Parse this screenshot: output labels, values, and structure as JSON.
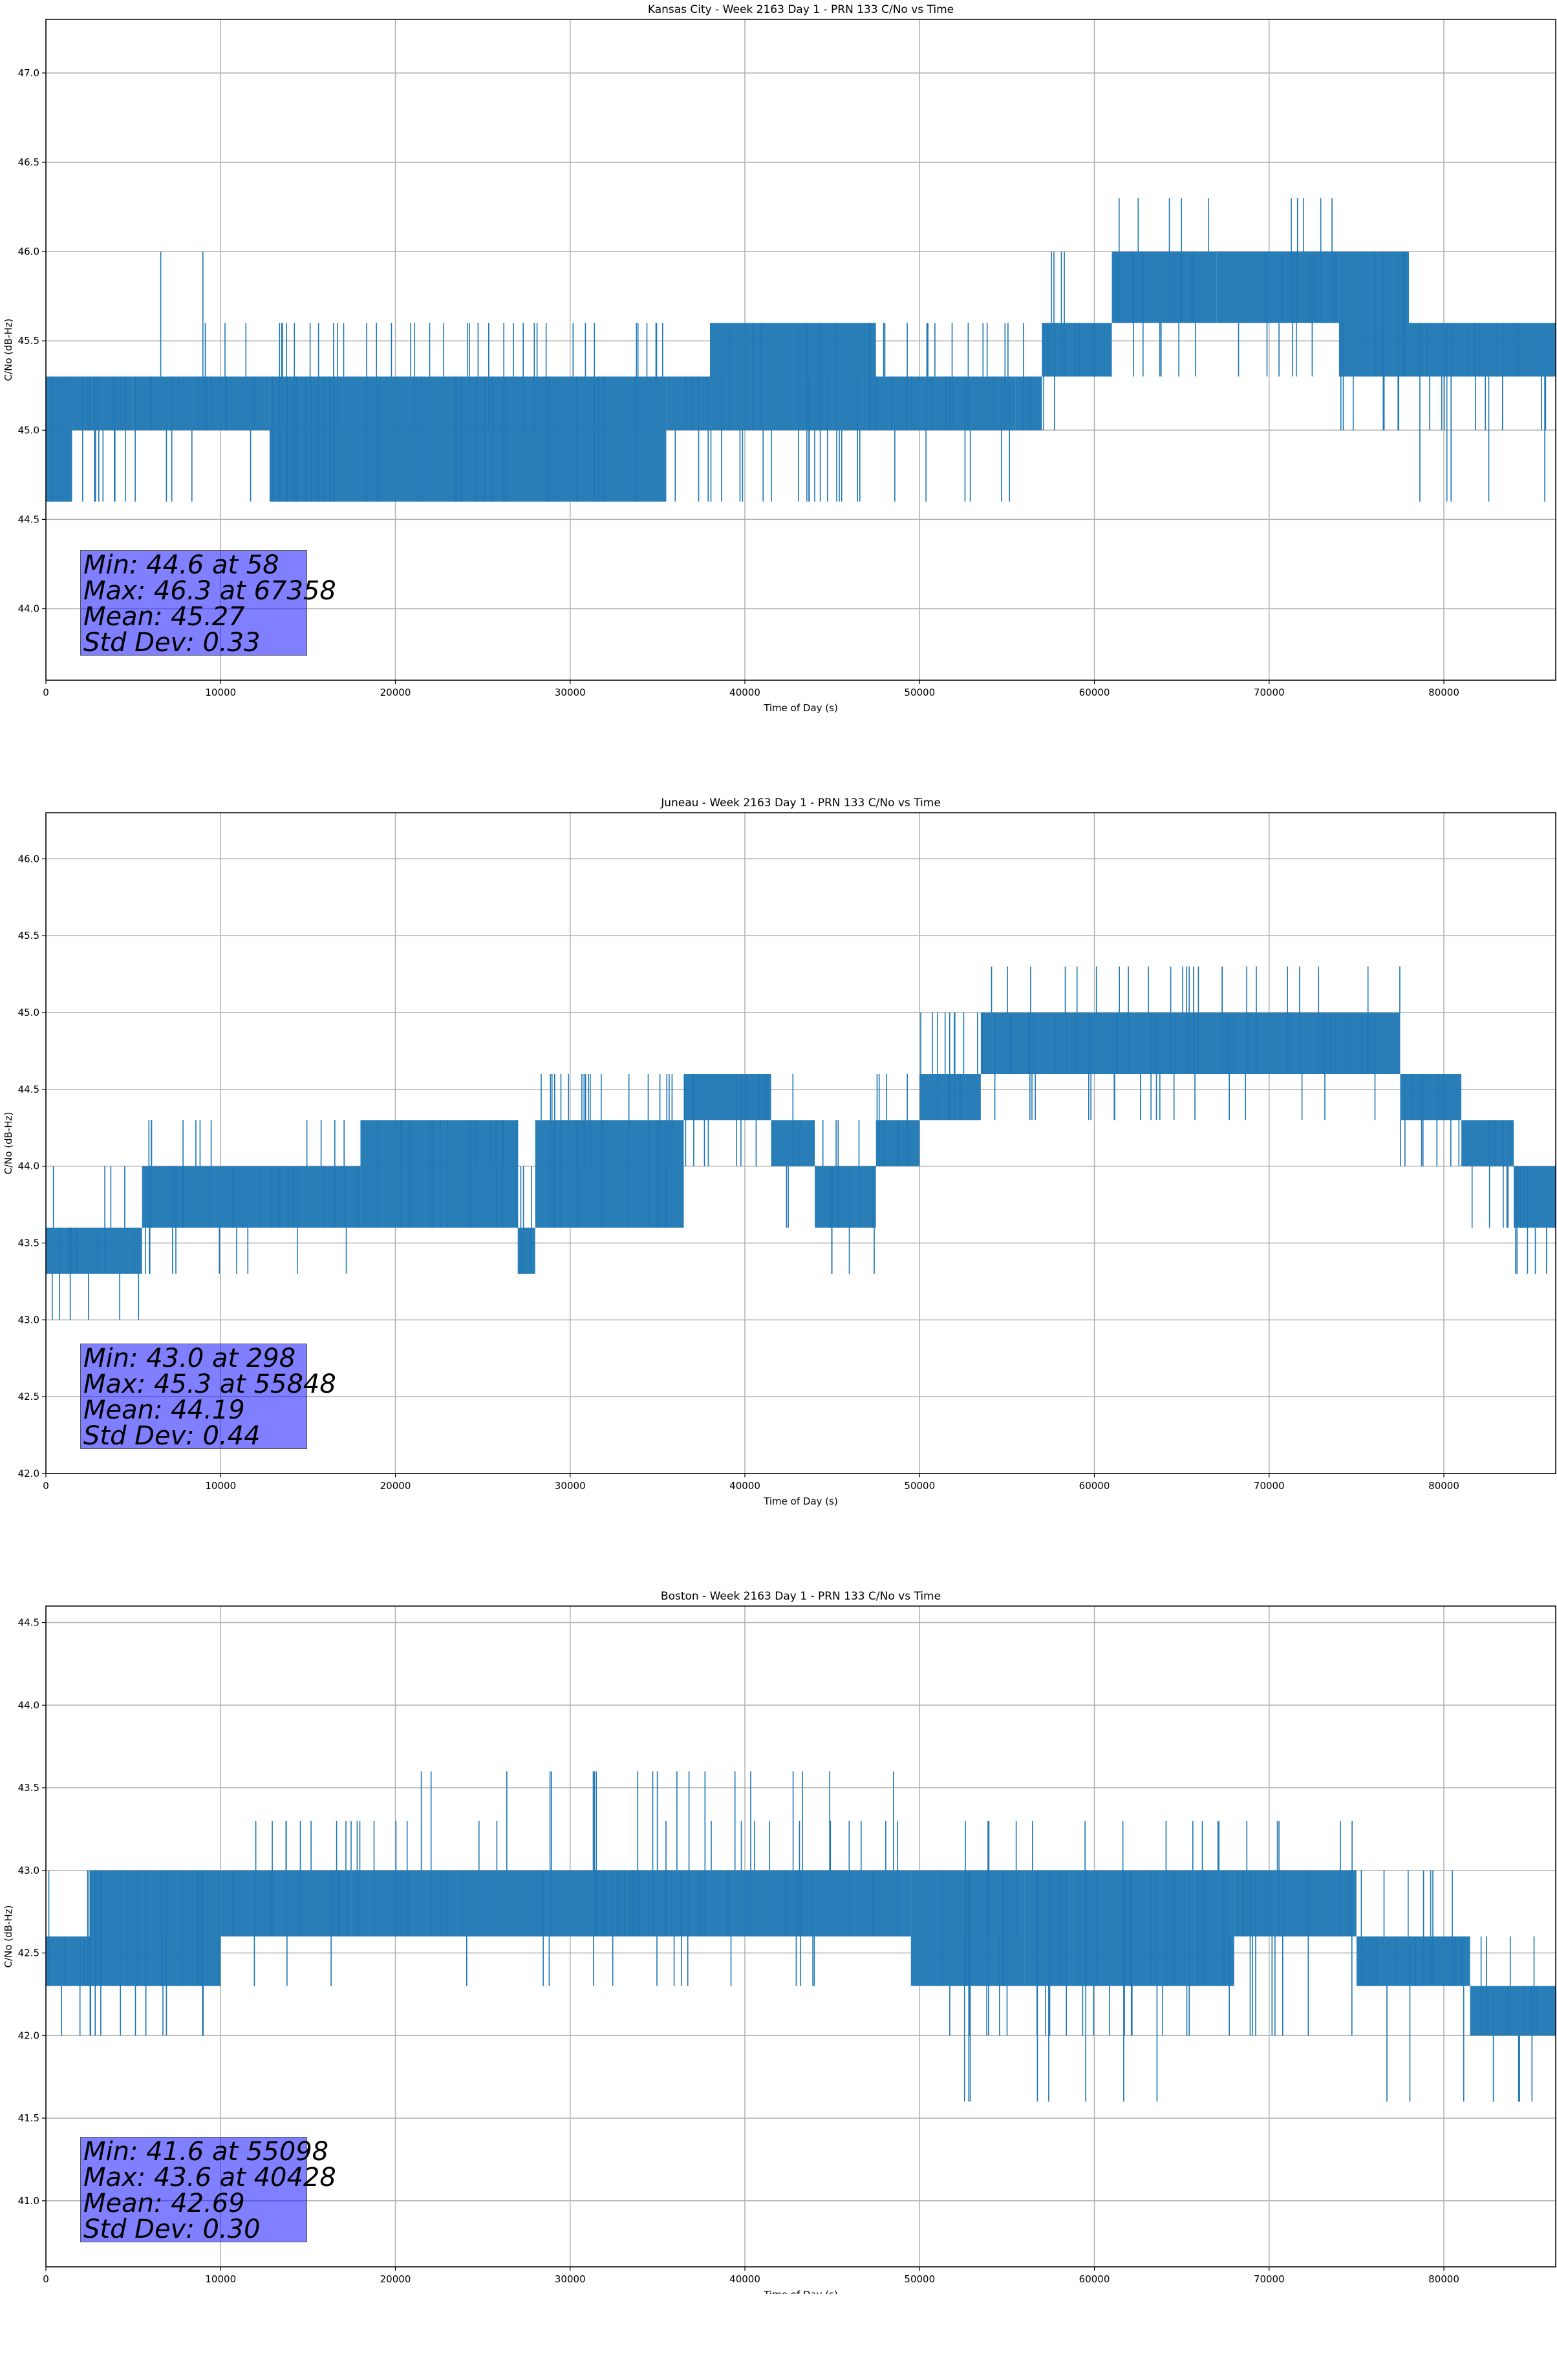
{
  "chart_data": [
    {
      "type": "line",
      "title": "Kansas City - Week 2163 Day 1 - PRN 133 C/No vs Time",
      "xlabel": "Time of Day (s)",
      "ylabel": "C/No (dB-Hz)",
      "xlim": [
        0,
        86400
      ],
      "ylim": [
        43.6,
        47.3
      ],
      "xticks": [
        0,
        10000,
        20000,
        30000,
        40000,
        50000,
        60000,
        70000,
        80000
      ],
      "yticks": [
        44.0,
        44.5,
        45.0,
        45.5,
        46.0,
        46.5,
        47.0
      ],
      "grid": true,
      "color": "#1f77b4",
      "series": [
        {
          "segments": [
            {
              "x": [
                0,
                1500
              ],
              "levels": [
                44.6,
                45.0,
                45.3
              ],
              "spikes": [
                45.3
              ]
            },
            {
              "x": [
                1500,
                5000
              ],
              "levels": [
                45.0,
                45.3
              ],
              "spikes": [
                44.6
              ]
            },
            {
              "x": [
                5000,
                12800
              ],
              "levels": [
                45.0,
                45.3
              ],
              "spikes": [
                45.6,
                46.0,
                44.6
              ]
            },
            {
              "x": [
                12800,
                35500
              ],
              "levels": [
                44.6,
                45.0,
                45.3
              ],
              "spikes": [
                45.6
              ]
            },
            {
              "x": [
                35500,
                38000
              ],
              "levels": [
                45.0,
                45.3
              ],
              "spikes": [
                44.6
              ]
            },
            {
              "x": [
                38000,
                47500
              ],
              "levels": [
                45.0,
                45.3,
                45.6
              ],
              "spikes": [
                44.6
              ]
            },
            {
              "x": [
                47500,
                55500
              ],
              "levels": [
                45.0,
                45.3
              ],
              "spikes": [
                44.6,
                45.6
              ]
            },
            {
              "x": [
                55500,
                57000
              ],
              "levels": [
                45.0,
                45.3
              ],
              "spikes": [
                45.6
              ]
            },
            {
              "x": [
                57000,
                61000
              ],
              "levels": [
                45.3,
                45.6
              ],
              "spikes": [
                45.0,
                46.0
              ]
            },
            {
              "x": [
                61000,
                67000
              ],
              "levels": [
                45.6,
                46.0
              ],
              "spikes": [
                45.3,
                46.3
              ]
            },
            {
              "x": [
                67000,
                74000
              ],
              "levels": [
                45.6,
                46.0
              ],
              "spikes": [
                45.3,
                46.3
              ]
            },
            {
              "x": [
                74000,
                78000
              ],
              "levels": [
                45.3,
                45.6,
                46.0
              ],
              "spikes": [
                45.0
              ]
            },
            {
              "x": [
                78000,
                86400
              ],
              "levels": [
                45.3,
                45.6
              ],
              "spikes": [
                45.0,
                44.6
              ]
            }
          ]
        }
      ],
      "annotation": [
        "Min: 44.6 at 58",
        "Max: 46.3 at 67358",
        "Mean: 45.27",
        "Std Dev: 0.33"
      ]
    },
    {
      "type": "line",
      "title": "Juneau - Week 2163 Day 1 - PRN 133 C/No vs Time",
      "xlabel": "Time of Day (s)",
      "ylabel": "C/No (dB-Hz)",
      "xlim": [
        0,
        86400
      ],
      "ylim": [
        42.0,
        46.3
      ],
      "xticks": [
        0,
        10000,
        20000,
        30000,
        40000,
        50000,
        60000,
        70000,
        80000
      ],
      "yticks": [
        42.0,
        42.5,
        43.0,
        43.5,
        44.0,
        44.5,
        45.0,
        45.5,
        46.0
      ],
      "grid": true,
      "color": "#1f77b4",
      "series": [
        {
          "segments": [
            {
              "x": [
                0,
                5500
              ],
              "levels": [
                43.3,
                43.6
              ],
              "spikes": [
                43.0,
                44.0
              ]
            },
            {
              "x": [
                5500,
                18000
              ],
              "levels": [
                43.6,
                44.0
              ],
              "spikes": [
                43.3,
                44.3
              ]
            },
            {
              "x": [
                18000,
                27000
              ],
              "levels": [
                43.6,
                44.0,
                44.3
              ],
              "spikes": [
                44.3
              ]
            },
            {
              "x": [
                27000,
                28000
              ],
              "levels": [
                43.3,
                43.6
              ],
              "spikes": [
                44.0
              ]
            },
            {
              "x": [
                28000,
                36500
              ],
              "levels": [
                43.6,
                44.0,
                44.3
              ],
              "spikes": [
                44.6
              ]
            },
            {
              "x": [
                36500,
                41500
              ],
              "levels": [
                44.3,
                44.6
              ],
              "spikes": [
                44.0
              ]
            },
            {
              "x": [
                41500,
                44000
              ],
              "levels": [
                44.0,
                44.3
              ],
              "spikes": [
                43.6,
                44.6
              ]
            },
            {
              "x": [
                44000,
                47500
              ],
              "levels": [
                43.6,
                44.0
              ],
              "spikes": [
                44.3,
                43.3
              ]
            },
            {
              "x": [
                47500,
                50000
              ],
              "levels": [
                44.0,
                44.3
              ],
              "spikes": [
                44.6
              ]
            },
            {
              "x": [
                50000,
                53500
              ],
              "levels": [
                44.3,
                44.6
              ],
              "spikes": [
                45.0
              ]
            },
            {
              "x": [
                53500,
                57000
              ],
              "levels": [
                44.6,
                45.0
              ],
              "spikes": [
                44.3,
                45.3
              ]
            },
            {
              "x": [
                57000,
                73500
              ],
              "levels": [
                44.6,
                45.0
              ],
              "spikes": [
                44.3,
                45.3
              ]
            },
            {
              "x": [
                73500,
                77500
              ],
              "levels": [
                44.6,
                45.0
              ],
              "spikes": [
                44.3,
                45.3
              ]
            },
            {
              "x": [
                77500,
                81000
              ],
              "levels": [
                44.3,
                44.6
              ],
              "spikes": [
                44.0
              ]
            },
            {
              "x": [
                81000,
                84000
              ],
              "levels": [
                44.0,
                44.3
              ],
              "spikes": [
                43.6
              ]
            },
            {
              "x": [
                84000,
                86400
              ],
              "levels": [
                43.6,
                44.0
              ],
              "spikes": [
                43.3
              ]
            }
          ]
        }
      ],
      "annotation": [
        "Min: 43.0 at 298",
        "Max: 45.3 at 55848",
        "Mean: 44.19",
        "Std Dev: 0.44"
      ]
    },
    {
      "type": "line",
      "title": "Boston - Week 2163 Day 1 - PRN 133 C/No vs Time",
      "xlabel": "Time of Day (s)",
      "ylabel": "C/No (dB-Hz)",
      "xlim": [
        0,
        86400
      ],
      "ylim": [
        40.6,
        44.6
      ],
      "xticks": [
        0,
        10000,
        20000,
        30000,
        40000,
        50000,
        60000,
        70000,
        80000
      ],
      "yticks": [
        41.0,
        41.5,
        42.0,
        42.5,
        43.0,
        43.5,
        44.0,
        44.5
      ],
      "grid": true,
      "color": "#1f77b4",
      "series": [
        {
          "segments": [
            {
              "x": [
                0,
                2500
              ],
              "levels": [
                42.3,
                42.6
              ],
              "spikes": [
                42.0,
                43.0
              ]
            },
            {
              "x": [
                2500,
                10000
              ],
              "levels": [
                42.3,
                42.6,
                43.0
              ],
              "spikes": [
                42.0
              ]
            },
            {
              "x": [
                10000,
                17500
              ],
              "levels": [
                42.6,
                43.0
              ],
              "spikes": [
                42.3,
                43.3
              ]
            },
            {
              "x": [
                17500,
                21000
              ],
              "levels": [
                42.6,
                43.0
              ],
              "spikes": [
                43.3
              ]
            },
            {
              "x": [
                21000,
                49500
              ],
              "levels": [
                42.6,
                43.0
              ],
              "spikes": [
                43.3,
                42.3,
                43.6
              ]
            },
            {
              "x": [
                49500,
                56000
              ],
              "levels": [
                42.3,
                42.6,
                43.0
              ],
              "spikes": [
                42.0,
                41.6,
                43.3
              ]
            },
            {
              "x": [
                56000,
                68000
              ],
              "levels": [
                42.3,
                42.6,
                43.0
              ],
              "spikes": [
                43.3,
                41.6,
                42.0
              ]
            },
            {
              "x": [
                68000,
                75000
              ],
              "levels": [
                42.6,
                43.0
              ],
              "spikes": [
                42.0,
                43.3
              ]
            },
            {
              "x": [
                75000,
                81500
              ],
              "levels": [
                42.3,
                42.6
              ],
              "spikes": [
                43.0,
                41.6
              ]
            },
            {
              "x": [
                81500,
                86400
              ],
              "levels": [
                42.0,
                42.3
              ],
              "spikes": [
                42.6,
                41.6
              ]
            }
          ]
        }
      ],
      "annotation": [
        "Min: 41.6 at 55098",
        "Max: 43.6 at 40428",
        "Mean: 42.69",
        "Std Dev: 0.30"
      ]
    }
  ]
}
